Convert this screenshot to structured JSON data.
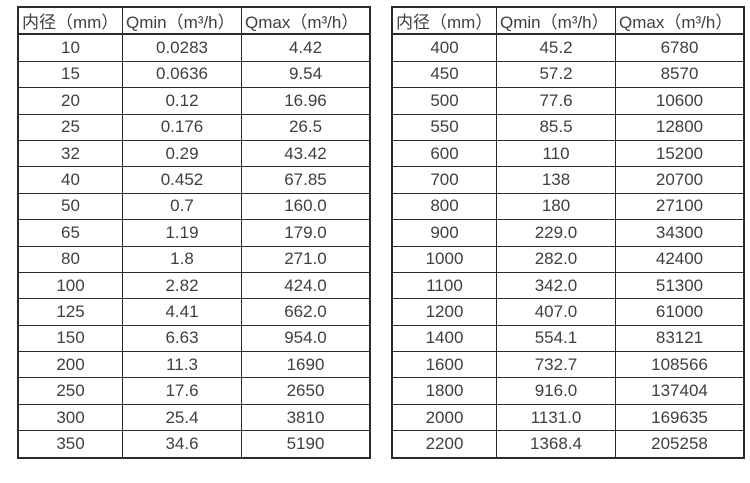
{
  "page": {
    "background_color": "#ffffff",
    "text_color": "#3f3f3f",
    "border_color": "#2b2b2b"
  },
  "tables": [
    {
      "name": "flow-spec-small-diameters",
      "headers": [
        "内径（mm）",
        "Qmin（m³/h）",
        "Qmax（m³/h）"
      ],
      "rows": [
        [
          "10",
          "0.0283",
          "4.42"
        ],
        [
          "15",
          "0.0636",
          "9.54"
        ],
        [
          "20",
          "0.12",
          "16.96"
        ],
        [
          "25",
          "0.176",
          "26.5"
        ],
        [
          "32",
          "0.29",
          "43.42"
        ],
        [
          "40",
          "0.452",
          "67.85"
        ],
        [
          "50",
          "0.7",
          "160.0"
        ],
        [
          "65",
          "1.19",
          "179.0"
        ],
        [
          "80",
          "1.8",
          "271.0"
        ],
        [
          "100",
          "2.82",
          "424.0"
        ],
        [
          "125",
          "4.41",
          "662.0"
        ],
        [
          "150",
          "6.63",
          "954.0"
        ],
        [
          "200",
          "11.3",
          "1690"
        ],
        [
          "250",
          "17.6",
          "2650"
        ],
        [
          "300",
          "25.4",
          "3810"
        ],
        [
          "350",
          "34.6",
          "5190"
        ]
      ]
    },
    {
      "name": "flow-spec-large-diameters",
      "headers": [
        "内径（mm）",
        "Qmin（m³/h）",
        "Qmax（m³/h）"
      ],
      "rows": [
        [
          "400",
          "45.2",
          "6780"
        ],
        [
          "450",
          "57.2",
          "8570"
        ],
        [
          "500",
          "77.6",
          "10600"
        ],
        [
          "550",
          "85.5",
          "12800"
        ],
        [
          "600",
          "110",
          "15200"
        ],
        [
          "700",
          "138",
          "20700"
        ],
        [
          "800",
          "180",
          "27100"
        ],
        [
          "900",
          "229.0",
          "34300"
        ],
        [
          "1000",
          "282.0",
          "42400"
        ],
        [
          "1100",
          "342.0",
          "51300"
        ],
        [
          "1200",
          "407.0",
          "61000"
        ],
        [
          "1400",
          "554.1",
          "83121"
        ],
        [
          "1600",
          "732.7",
          "108566"
        ],
        [
          "1800",
          "916.0",
          "137404"
        ],
        [
          "2000",
          "1131.0",
          "169635"
        ],
        [
          "2200",
          "1368.4",
          "205258"
        ]
      ]
    }
  ]
}
